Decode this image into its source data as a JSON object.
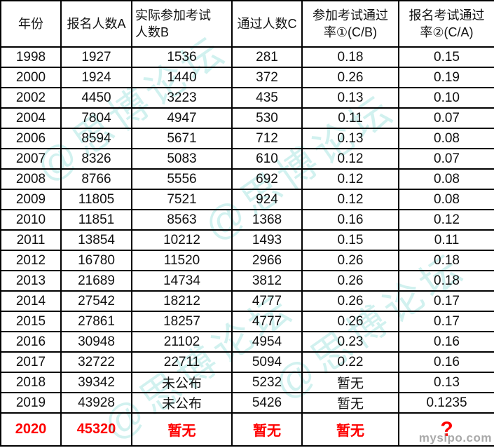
{
  "table": {
    "headers": [
      "年份",
      "报名人数A",
      "实际参加考试\n人数B",
      "通过人数C",
      "参加考试通过\n率①(C/B)",
      "报名考试通过\n率②(C/A)"
    ],
    "rows": [
      {
        "highlight": false,
        "cells": [
          "1998",
          "1927",
          "1536",
          "281",
          "0.18",
          "0.15"
        ]
      },
      {
        "highlight": false,
        "cells": [
          "2000",
          "1924",
          "1440",
          "372",
          "0.26",
          "0.19"
        ]
      },
      {
        "highlight": false,
        "cells": [
          "2002",
          "4450",
          "3223",
          "435",
          "0.13",
          "0.10"
        ]
      },
      {
        "highlight": false,
        "cells": [
          "2004",
          "7804",
          "4947",
          "530",
          "0.11",
          "0.07"
        ]
      },
      {
        "highlight": false,
        "cells": [
          "2006",
          "8594",
          "5671",
          "712",
          "0.13",
          "0.08"
        ]
      },
      {
        "highlight": false,
        "cells": [
          "2007",
          "8326",
          "5083",
          "610",
          "0.12",
          "0.07"
        ]
      },
      {
        "highlight": false,
        "cells": [
          "2008",
          "8766",
          "5556",
          "692",
          "0.12",
          "0.08"
        ]
      },
      {
        "highlight": false,
        "cells": [
          "2009",
          "11805",
          "7521",
          "924",
          "0.12",
          "0.08"
        ]
      },
      {
        "highlight": false,
        "cells": [
          "2010",
          "11851",
          "8563",
          "1368",
          "0.16",
          "0.12"
        ]
      },
      {
        "highlight": false,
        "cells": [
          "2011",
          "13854",
          "10212",
          "1493",
          "0.15",
          "0.11"
        ]
      },
      {
        "highlight": false,
        "cells": [
          "2012",
          "16780",
          "11520",
          "2966",
          "0.26",
          "0.18"
        ]
      },
      {
        "highlight": false,
        "cells": [
          "2013",
          "21689",
          "14734",
          "3812",
          "0.26",
          "0.18"
        ]
      },
      {
        "highlight": false,
        "cells": [
          "2014",
          "27542",
          "18212",
          "4777",
          "0.26",
          "0.17"
        ]
      },
      {
        "highlight": false,
        "cells": [
          "2015",
          "27861",
          "18257",
          "4777",
          "0.26",
          "0.17"
        ]
      },
      {
        "highlight": false,
        "cells": [
          "2016",
          "30948",
          "21102",
          "4954",
          "0.23",
          "0.16"
        ]
      },
      {
        "highlight": false,
        "cells": [
          "2017",
          "32722",
          "22711",
          "5094",
          "0.22",
          "0.16"
        ]
      },
      {
        "highlight": false,
        "cells": [
          "2018",
          "39342",
          "未公布",
          "5232",
          "暂无",
          "0.13"
        ]
      },
      {
        "highlight": false,
        "cells": [
          "2019",
          "43928",
          "未公布",
          "5426",
          "暂无",
          "0.1235"
        ]
      },
      {
        "highlight": true,
        "cells": [
          "2020",
          "45320",
          "暂无",
          "暂无",
          "暂无",
          "?"
        ]
      }
    ]
  },
  "watermarks": {
    "forum_text": "@思博论坛",
    "site_text": "mysipo.com"
  },
  "colors": {
    "highlight_red": "#fe0000",
    "watermark_cyan": "rgba(102, 208, 201, 0.55)",
    "site_gray": "#9b9b9b",
    "grid_black": "#000000"
  }
}
